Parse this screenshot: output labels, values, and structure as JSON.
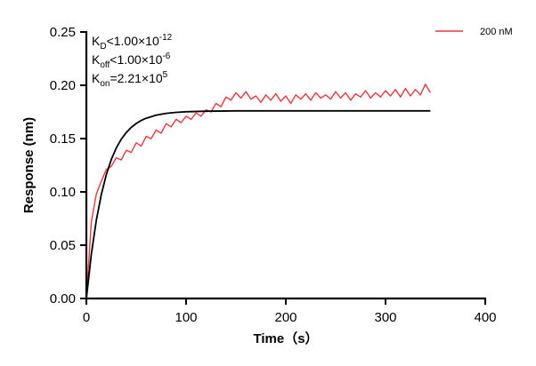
{
  "chart_data": {
    "type": "line",
    "title": "",
    "xlabel": "Time（s）",
    "ylabel": "Response (nm)",
    "xlim": [
      0,
      400
    ],
    "ylim": [
      0,
      0.25
    ],
    "xticks": [
      "0",
      "100",
      "200",
      "300",
      "400"
    ],
    "yticks": [
      "0.00",
      "0.05",
      "0.10",
      "0.15",
      "0.20",
      "0.25"
    ],
    "grid": false,
    "legend_position": "top-right",
    "annotations": {
      "kd": {
        "base": "K",
        "sub": "D",
        "rel": "<1.00×10",
        "exp": "-12"
      },
      "koff": {
        "base": "K",
        "sub": "off",
        "rel": "<1.00×10",
        "exp": "-6"
      },
      "kon": {
        "base": "K",
        "sub": "on",
        "rel": "=2.21×10",
        "exp": "5"
      }
    },
    "series": [
      {
        "name": "200 nM",
        "color": "#e8383d",
        "x": [
          0,
          5,
          10,
          15,
          20,
          25,
          30,
          35,
          40,
          45,
          50,
          55,
          60,
          65,
          70,
          75,
          80,
          85,
          90,
          95,
          100,
          105,
          110,
          115,
          120,
          125,
          130,
          135,
          140,
          145,
          150,
          155,
          160,
          165,
          170,
          175,
          180,
          185,
          190,
          195,
          200,
          205,
          210,
          215,
          220,
          225,
          230,
          235,
          240,
          245,
          250,
          255,
          260,
          265,
          270,
          275,
          280,
          285,
          290,
          295,
          300,
          305,
          310,
          315,
          320,
          325,
          330,
          335,
          340,
          345
        ],
        "y": [
          0.0,
          0.072,
          0.098,
          0.11,
          0.121,
          0.124,
          0.132,
          0.13,
          0.139,
          0.137,
          0.146,
          0.143,
          0.152,
          0.15,
          0.158,
          0.155,
          0.164,
          0.161,
          0.168,
          0.165,
          0.171,
          0.168,
          0.174,
          0.171,
          0.177,
          0.175,
          0.183,
          0.18,
          0.189,
          0.186,
          0.193,
          0.188,
          0.194,
          0.187,
          0.19,
          0.184,
          0.191,
          0.186,
          0.192,
          0.185,
          0.19,
          0.183,
          0.191,
          0.187,
          0.192,
          0.186,
          0.193,
          0.188,
          0.191,
          0.187,
          0.194,
          0.188,
          0.193,
          0.186,
          0.192,
          0.189,
          0.195,
          0.188,
          0.193,
          0.189,
          0.195,
          0.19,
          0.196,
          0.189,
          0.197,
          0.19,
          0.196,
          0.191,
          0.201,
          0.193
        ]
      },
      {
        "color": "#000000",
        "x": [
          0,
          5,
          10,
          15,
          20,
          25,
          30,
          35,
          40,
          45,
          50,
          55,
          60,
          70,
          80,
          90,
          100,
          120,
          150,
          200,
          250,
          300,
          345
        ],
        "y": [
          0,
          0.0417,
          0.0734,
          0.0977,
          0.1162,
          0.1304,
          0.1412,
          0.1494,
          0.1557,
          0.1605,
          0.1642,
          0.167,
          0.1691,
          0.172,
          0.1737,
          0.1746,
          0.1752,
          0.1757,
          0.176,
          0.176,
          0.176,
          0.176,
          0.176
        ]
      }
    ]
  }
}
